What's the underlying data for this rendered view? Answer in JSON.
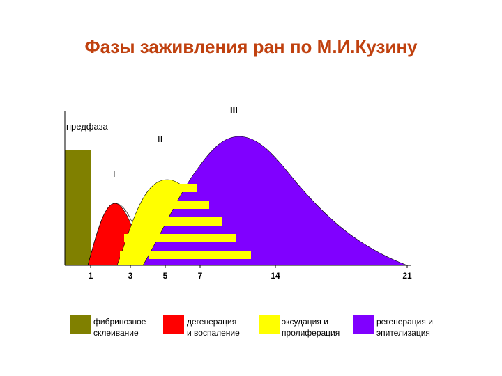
{
  "title": "Фазы  заживления  ран по М.И.Кузину",
  "colors": {
    "title": "#c0410f",
    "olive": "#808000",
    "red": "#ff0000",
    "yellow": "#ffff00",
    "violet": "#8000ff"
  },
  "chart_data": {
    "type": "area",
    "x_ticks": [
      "1",
      "3",
      "5",
      "7",
      "14",
      "21"
    ],
    "y_axis_labels": "none",
    "phase_labels": [
      "предфаза",
      "I",
      "II",
      "III"
    ],
    "series": [
      {
        "legend_lines": [
          "фибринозное",
          "склеивание"
        ],
        "color": "#808000",
        "shape": "block",
        "x_end": "1",
        "relative_height": 0.6
      },
      {
        "legend_lines": [
          "дегенерация",
          "и  воспаление"
        ],
        "color": "#ff0000",
        "shape": "peak",
        "x_peak": "2",
        "relative_height": 0.35
      },
      {
        "legend_lines": [
          "эксудация   и",
          "пролиферация"
        ],
        "color": "#ffff00",
        "shape": "peak",
        "x_peak": "4.5",
        "relative_height": 0.5
      },
      {
        "legend_lines": [
          "регенерация  и",
          "эпителизация"
        ],
        "color": "#8000ff",
        "shape": "peak",
        "x_peak": "10",
        "relative_height": 0.8,
        "x_end": "21"
      }
    ]
  }
}
